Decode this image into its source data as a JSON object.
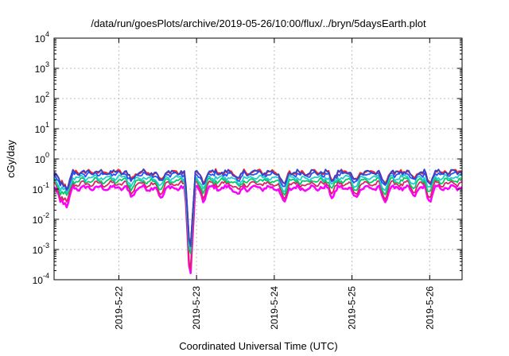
{
  "chart_data": {
    "type": "line",
    "title": "/data/run/goesPlots/archive/2019-05-26/10:00/flux/../bryn/5daysEarth.plot",
    "xlabel": "Coordinated Universal Time (UTC)",
    "ylabel": "cGy/day",
    "y_scale": "log",
    "ylim": [
      0.0001,
      10000
    ],
    "yticks": [
      {
        "base": "10",
        "exp": "-4"
      },
      {
        "base": "10",
        "exp": "-3"
      },
      {
        "base": "10",
        "exp": "-2"
      },
      {
        "base": "10",
        "exp": "-1"
      },
      {
        "base": "10",
        "exp": "0"
      },
      {
        "base": "10",
        "exp": "1"
      },
      {
        "base": "10",
        "exp": "2"
      },
      {
        "base": "10",
        "exp": "3"
      },
      {
        "base": "10",
        "exp": "4"
      }
    ],
    "xlim": [
      "2019-05-21T04:00",
      "2019-05-26T10:00"
    ],
    "xticks": [
      "2019-5-22",
      "2019-5-23",
      "2019-5-24",
      "2019-5-25",
      "2019-5-26"
    ],
    "grid": true,
    "legend": "none",
    "series": [
      {
        "color": "#ff00ff",
        "base": 0.11
      },
      {
        "color": "#dd2266",
        "base": 0.15
      },
      {
        "color": "#00cc66",
        "base": 0.19
      },
      {
        "color": "#22cccc",
        "base": 0.24
      },
      {
        "color": "#2255ff",
        "base": 0.32
      },
      {
        "color": "#ff2222",
        "base": 0.37
      },
      {
        "color": "#3344cc",
        "base": 0.36
      }
    ],
    "events": [
      {
        "t": "2019-05-21T06:00",
        "factor": 0.35
      },
      {
        "t": "2019-05-21T08:00",
        "factor": 0.25
      },
      {
        "t": "2019-05-22T04:00",
        "factor": 0.55
      },
      {
        "t": "2019-05-22T13:00",
        "factor": 0.5
      },
      {
        "t": "2019-05-22T22:00",
        "factor": 0.002
      },
      {
        "t": "2019-05-23T02:00",
        "factor": 0.4
      },
      {
        "t": "2019-05-23T13:00",
        "factor": 0.55
      },
      {
        "t": "2019-05-24T03:00",
        "factor": 0.3
      },
      {
        "t": "2019-05-24T18:00",
        "factor": 0.55
      },
      {
        "t": "2019-05-25T01:00",
        "factor": 0.5
      },
      {
        "t": "2019-05-25T10:00",
        "factor": 0.35
      },
      {
        "t": "2019-05-25T19:00",
        "factor": 0.55
      },
      {
        "t": "2019-05-26T00:00",
        "factor": 0.4
      }
    ]
  }
}
